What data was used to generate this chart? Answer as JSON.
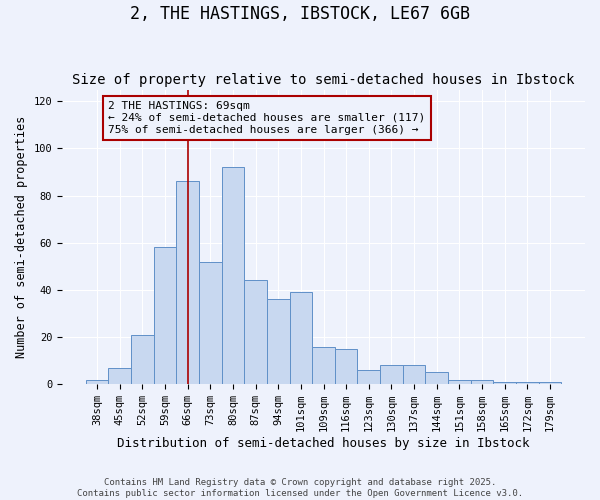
{
  "title": "2, THE HASTINGS, IBSTOCK, LE67 6GB",
  "subtitle": "Size of property relative to semi-detached houses in Ibstock",
  "xlabel": "Distribution of semi-detached houses by size in Ibstock",
  "ylabel": "Number of semi-detached properties",
  "categories": [
    "38sqm",
    "45sqm",
    "52sqm",
    "59sqm",
    "66sqm",
    "73sqm",
    "80sqm",
    "87sqm",
    "94sqm",
    "101sqm",
    "109sqm",
    "116sqm",
    "123sqm",
    "130sqm",
    "137sqm",
    "144sqm",
    "151sqm",
    "158sqm",
    "165sqm",
    "172sqm",
    "179sqm"
  ],
  "values": [
    2,
    7,
    21,
    58,
    86,
    52,
    92,
    44,
    36,
    39,
    16,
    15,
    6,
    8,
    8,
    5,
    2,
    2,
    1,
    1,
    1
  ],
  "bar_color": "#c8d8f0",
  "bar_edge_color": "#6090c8",
  "vline_x": 4,
  "vline_color": "#aa0000",
  "annotation_line1": "2 THE HASTINGS: 69sqm",
  "annotation_line2": "← 24% of semi-detached houses are smaller (117)",
  "annotation_line3": "75% of semi-detached houses are larger (366) →",
  "ylim": [
    0,
    125
  ],
  "yticks": [
    0,
    20,
    40,
    60,
    80,
    100,
    120
  ],
  "background_color": "#eef2fc",
  "footer_text": "Contains HM Land Registry data © Crown copyright and database right 2025.\nContains public sector information licensed under the Open Government Licence v3.0.",
  "title_fontsize": 12,
  "subtitle_fontsize": 10,
  "xlabel_fontsize": 9,
  "ylabel_fontsize": 8.5,
  "tick_fontsize": 7.5,
  "annotation_fontsize": 8,
  "footer_fontsize": 6.5
}
